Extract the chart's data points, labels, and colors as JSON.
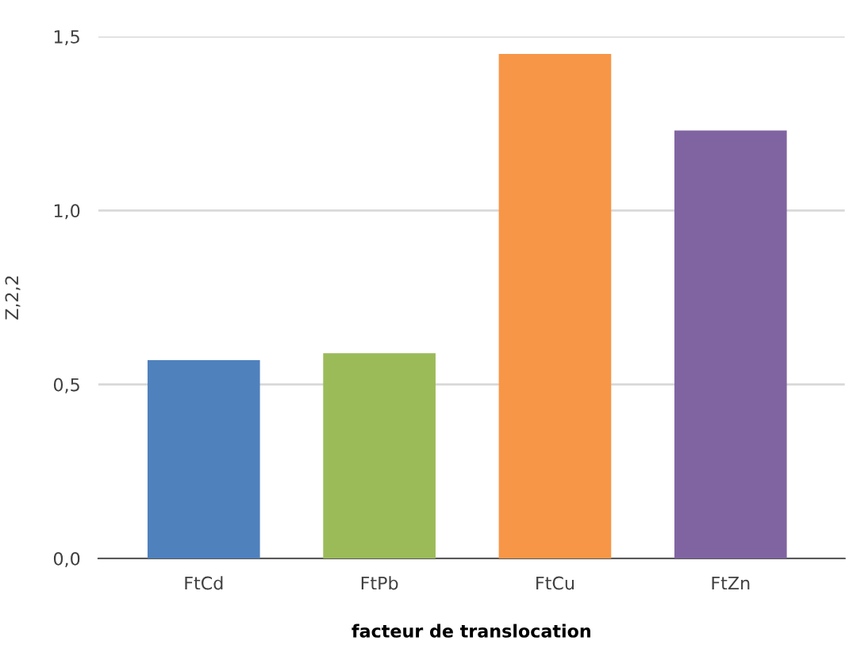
{
  "chart_data": {
    "type": "bar",
    "xlabel": "facteur de translocation",
    "ylabel": "Z,2,2",
    "categories": [
      "FtCd",
      "FtPb",
      "FtCu",
      "FtZn"
    ],
    "values": [
      0.57,
      0.59,
      1.45,
      1.23
    ],
    "colors": [
      "#4f81bd",
      "#9bbb59",
      "#f79646",
      "#8064a2"
    ],
    "ylim": [
      0,
      1.5
    ],
    "yticks": [
      {
        "value": 0,
        "label": "0,0"
      },
      {
        "value": 0.5,
        "label": "0,5"
      },
      {
        "value": 1.0,
        "label": "1,0"
      },
      {
        "value": 1.5,
        "label": "1,5"
      }
    ],
    "grid": "y",
    "legend": false
  }
}
